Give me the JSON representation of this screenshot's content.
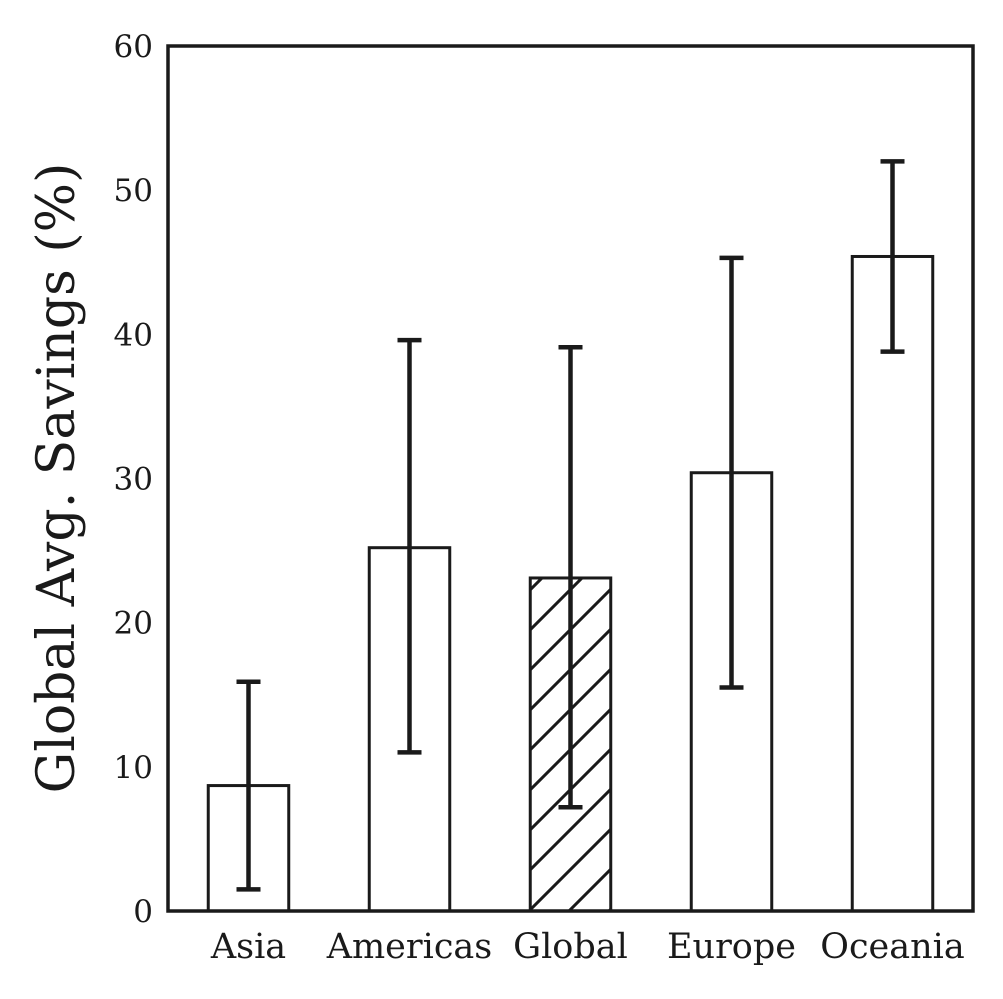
{
  "chart_data": {
    "type": "bar",
    "title": "",
    "xlabel": "",
    "ylabel": "Global Avg. Savings (%)",
    "ylim": [
      0,
      60
    ],
    "yticks": [
      "0",
      "10",
      "20",
      "30",
      "40",
      "50",
      "60"
    ],
    "grid": false,
    "categories": [
      "Asia",
      "Americas",
      "Global",
      "Europe",
      "Oceania"
    ],
    "values": [
      8.7,
      25.2,
      23.1,
      30.4,
      45.4
    ],
    "error_low": [
      1.5,
      11.0,
      7.2,
      15.5,
      38.8
    ],
    "error_high": [
      15.9,
      39.6,
      39.1,
      45.3,
      52.0
    ],
    "hatched": [
      false,
      false,
      true,
      false,
      false
    ],
    "colors": {
      "bar_fill": "#ffffff",
      "stroke": "#1a1a1a"
    }
  }
}
